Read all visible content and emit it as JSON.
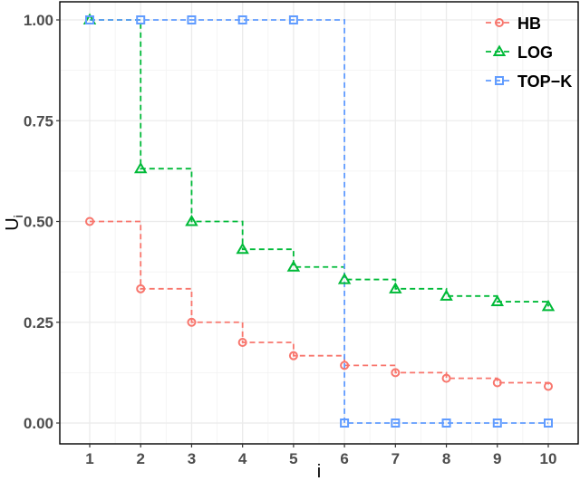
{
  "chart_data": {
    "type": "line",
    "step": "hv",
    "title": "",
    "xlabel": "i",
    "ylabel": "U_i",
    "x": [
      1,
      2,
      3,
      4,
      5,
      6,
      7,
      8,
      9,
      10
    ],
    "xticks": [
      "1",
      "2",
      "3",
      "4",
      "5",
      "6",
      "7",
      "8",
      "9",
      "10"
    ],
    "yticks": [
      "0.00",
      "0.25",
      "0.50",
      "0.75",
      "1.00"
    ],
    "ylim": [
      -0.045,
      1.045
    ],
    "xlim": [
      0.4,
      10.6
    ],
    "grid": true,
    "legend_position": "top-right-inside",
    "series": [
      {
        "name": "HB",
        "color": "#F8766D",
        "marker": "circle",
        "values": [
          0.5,
          0.333,
          0.25,
          0.2,
          0.167,
          0.143,
          0.125,
          0.111,
          0.1,
          0.091
        ]
      },
      {
        "name": "LOG",
        "color": "#00BA38",
        "marker": "triangle",
        "values": [
          1.0,
          0.631,
          0.5,
          0.431,
          0.387,
          0.356,
          0.333,
          0.315,
          0.301,
          0.289
        ]
      },
      {
        "name": "TOP-K",
        "color": "#619CFF",
        "marker": "square",
        "values": [
          1,
          1,
          1,
          1,
          1,
          0,
          0,
          0,
          0,
          0
        ]
      }
    ]
  },
  "legend": {
    "items": [
      {
        "label": "HB"
      },
      {
        "label": "LOG"
      },
      {
        "label": "TOP−K"
      }
    ]
  },
  "axes": {
    "xlabel": "i",
    "ylabel_main": "U",
    "ylabel_sub": "i"
  }
}
